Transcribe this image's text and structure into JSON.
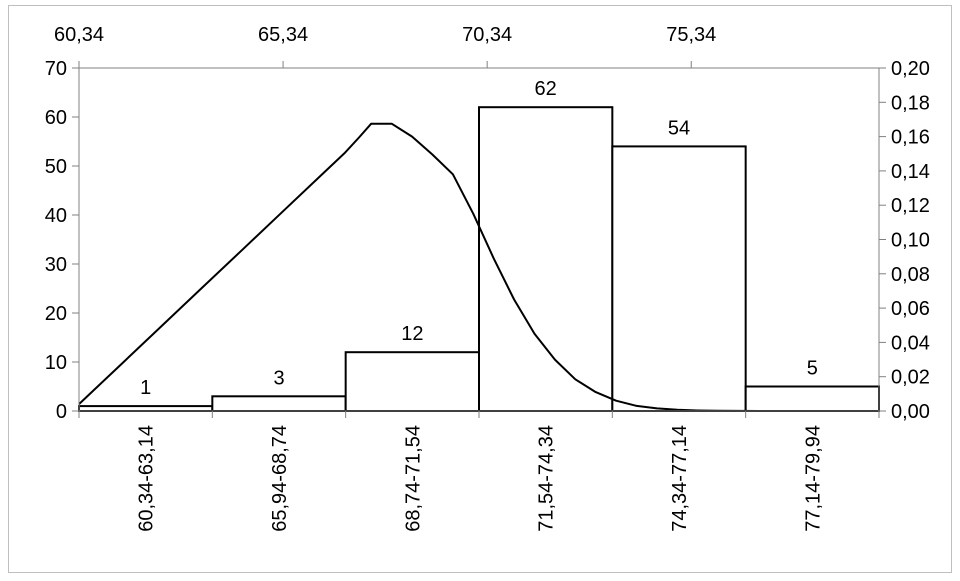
{
  "chart_data": {
    "type": "bar",
    "categories": [
      "60,34-63,14",
      "65,94-68,74",
      "68,74-71,54",
      "71,54-74,34",
      "74,34-77,14",
      "77,14-79,94"
    ],
    "values": [
      1,
      3,
      12,
      62,
      54,
      5
    ],
    "data_labels": [
      "1",
      "3",
      "12",
      "62",
      "54",
      "5"
    ],
    "ylim": [
      0,
      70
    ],
    "y_ticks": [
      "0",
      "10",
      "20",
      "30",
      "40",
      "50",
      "60",
      "70"
    ],
    "y_tick_values": [
      0,
      10,
      20,
      30,
      40,
      50,
      60,
      70
    ],
    "y2lim": [
      0,
      0.2
    ],
    "y2_ticks": [
      "0,00",
      "0,02",
      "0,04",
      "0,06",
      "0,08",
      "0,10",
      "0,12",
      "0,14",
      "0,16",
      "0,18",
      "0,20"
    ],
    "y2_tick_values": [
      0,
      0.02,
      0.04,
      0.06,
      0.08,
      0.1,
      0.12,
      0.14,
      0.16,
      0.18,
      0.2
    ],
    "x2lim": [
      60.34,
      79.94
    ],
    "x2_ticks": [
      "60,34",
      "65,34",
      "70,34",
      "75,34"
    ],
    "x2_tick_values": [
      60.34,
      65.34,
      70.34,
      75.34
    ],
    "curve": {
      "type": "line",
      "x": [
        60.34,
        61.34,
        62.34,
        63.34,
        64.34,
        65.34,
        66.34,
        66.84,
        67.2,
        67.5,
        68.0,
        68.5,
        69.0,
        69.5,
        70.0,
        70.5,
        71.0,
        71.5,
        72.0,
        72.5,
        73.0,
        73.5,
        74.0,
        74.5,
        75.0,
        75.5,
        76.0,
        77.0,
        78.0,
        79.94
      ],
      "y": [
        0.004,
        0.0265,
        0.049,
        0.0715,
        0.094,
        0.1165,
        0.139,
        0.1502,
        0.1595,
        0.1675,
        0.1675,
        0.16,
        0.1495,
        0.138,
        0.115,
        0.089,
        0.065,
        0.045,
        0.03,
        0.0185,
        0.011,
        0.006,
        0.003,
        0.0015,
        0.0007,
        0.0003,
        0.0001,
        0.0,
        0.0,
        0.0
      ]
    },
    "grid": false,
    "legend": "none"
  }
}
